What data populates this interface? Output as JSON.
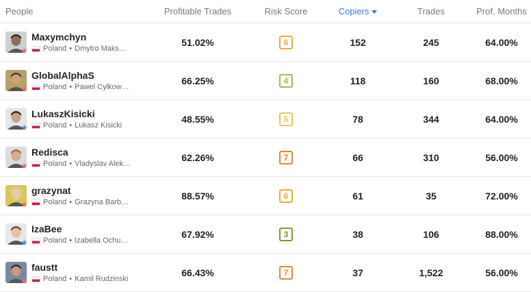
{
  "headers": {
    "people": "People",
    "profitable_trades": "Profitable Trades",
    "risk_score": "Risk Score",
    "copiers": "Copiers",
    "trades": "Trades",
    "prof_months": "Prof. Months"
  },
  "colors": {
    "risk_3": "#7a9a2e",
    "risk_4": "#9ac04a",
    "risk_5": "#e7c85c",
    "risk_6": "#e3ae3f",
    "risk_7": "#e08a2c",
    "star_red": "#e76f6f",
    "star_blue": "#4b8fd9",
    "header_active": "#3877c3"
  },
  "rows": [
    {
      "username": "Maxymchyn",
      "country": "Poland",
      "fullname": "Dmytro Maks…",
      "profitable": "51.02%",
      "risk": "6",
      "copiers": "152",
      "trades": "245",
      "prof_months": "64.00%",
      "star_color": "red"
    },
    {
      "username": "GlobalAlphaS",
      "country": "Poland",
      "fullname": "Pawel Cylkow…",
      "profitable": "66.25%",
      "risk": "4",
      "copiers": "118",
      "trades": "160",
      "prof_months": "68.00%",
      "star_color": "red"
    },
    {
      "username": "LukaszKisicki",
      "country": "Poland",
      "fullname": "Lukasz Kisicki",
      "profitable": "48.55%",
      "risk": "5",
      "copiers": "78",
      "trades": "344",
      "prof_months": "64.00%",
      "star_color": "blue"
    },
    {
      "username": "Redisca",
      "country": "Poland",
      "fullname": "Vladyslav Alek…",
      "profitable": "62.26%",
      "risk": "7",
      "copiers": "66",
      "trades": "310",
      "prof_months": "56.00%",
      "star_color": "red"
    },
    {
      "username": "grazynat",
      "country": "Poland",
      "fullname": "Grazyna Barb…",
      "profitable": "88.57%",
      "risk": "6",
      "copiers": "61",
      "trades": "35",
      "prof_months": "72.00%",
      "star_color": "red"
    },
    {
      "username": "IzaBee",
      "country": "Poland",
      "fullname": "Izabella Ochu…",
      "profitable": "67.92%",
      "risk": "3",
      "copiers": "38",
      "trades": "106",
      "prof_months": "88.00%",
      "star_color": "blue"
    },
    {
      "username": "faustt",
      "country": "Poland",
      "fullname": "Kamil Rudzinski",
      "profitable": "66.43%",
      "risk": "7",
      "copiers": "37",
      "trades": "1,522",
      "prof_months": "56.00%",
      "star_color": "red"
    }
  ]
}
